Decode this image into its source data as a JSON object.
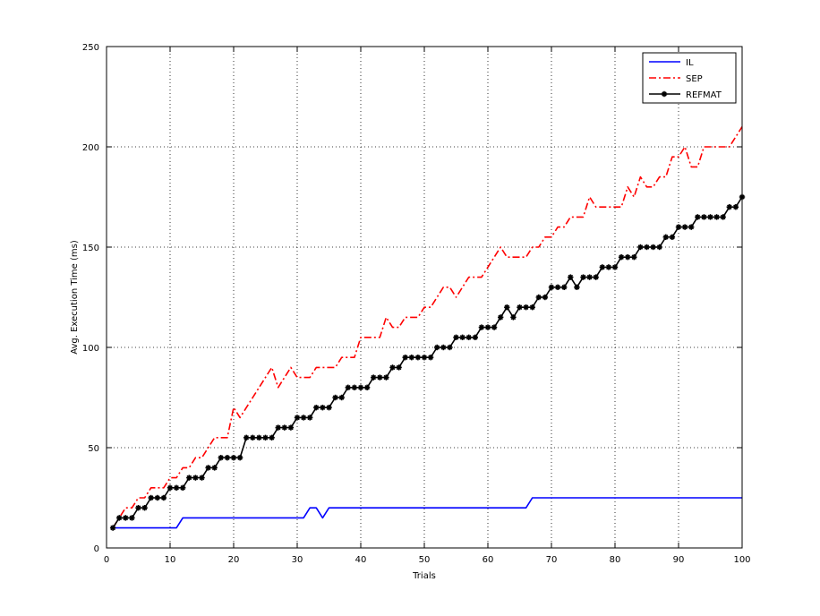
{
  "chart_data": {
    "type": "line",
    "title": "",
    "xlabel": "Trials",
    "ylabel": "Avg. Execution Time (ms)",
    "xlim": [
      0,
      100
    ],
    "ylim": [
      0,
      250
    ],
    "xticks": [
      0,
      10,
      20,
      30,
      40,
      50,
      60,
      70,
      80,
      90,
      100
    ],
    "yticks": [
      0,
      50,
      100,
      150,
      200,
      250
    ],
    "grid": true,
    "legend_position": "top-right",
    "series": [
      {
        "name": "IL",
        "color": "#0000ff",
        "style": "solid",
        "x": [
          1,
          2,
          3,
          4,
          5,
          6,
          7,
          8,
          9,
          10,
          11,
          12,
          13,
          14,
          15,
          16,
          17,
          18,
          19,
          20,
          21,
          22,
          23,
          24,
          25,
          26,
          27,
          28,
          29,
          30,
          31,
          32,
          33,
          34,
          35,
          36,
          37,
          38,
          39,
          40,
          41,
          42,
          43,
          44,
          45,
          46,
          47,
          48,
          49,
          50,
          51,
          52,
          53,
          54,
          55,
          56,
          57,
          58,
          59,
          60,
          61,
          62,
          63,
          64,
          65,
          66,
          67,
          68,
          69,
          70,
          71,
          72,
          73,
          74,
          75,
          76,
          77,
          78,
          79,
          80,
          81,
          82,
          83,
          84,
          85,
          86,
          87,
          88,
          89,
          90,
          91,
          92,
          93,
          94,
          95,
          96,
          97,
          98,
          99,
          100
        ],
        "y": [
          10,
          10,
          10,
          10,
          10,
          10,
          10,
          10,
          10,
          10,
          10,
          15,
          15,
          15,
          15,
          15,
          15,
          15,
          15,
          15,
          15,
          15,
          15,
          15,
          15,
          15,
          15,
          15,
          15,
          15,
          15,
          20,
          20,
          15,
          20,
          20,
          20,
          20,
          20,
          20,
          20,
          20,
          20,
          20,
          20,
          20,
          20,
          20,
          20,
          20,
          20,
          20,
          20,
          20,
          20,
          20,
          20,
          20,
          20,
          20,
          20,
          20,
          20,
          20,
          20,
          20,
          25,
          25,
          25,
          25,
          25,
          25,
          25,
          25,
          25,
          25,
          25,
          25,
          25,
          25,
          25,
          25,
          25,
          25,
          25,
          25,
          25,
          25,
          25,
          25,
          25,
          25,
          25,
          25,
          25,
          25,
          25,
          25,
          25,
          25
        ]
      },
      {
        "name": "SEP",
        "color": "#ff0000",
        "style": "dashdot",
        "x": [
          1,
          2,
          3,
          4,
          5,
          6,
          7,
          8,
          9,
          10,
          11,
          12,
          13,
          14,
          15,
          16,
          17,
          18,
          19,
          20,
          21,
          22,
          23,
          24,
          25,
          26,
          27,
          28,
          29,
          30,
          31,
          32,
          33,
          34,
          35,
          36,
          37,
          38,
          39,
          40,
          41,
          42,
          43,
          44,
          45,
          46,
          47,
          48,
          49,
          50,
          51,
          52,
          53,
          54,
          55,
          56,
          57,
          58,
          59,
          60,
          61,
          62,
          63,
          64,
          65,
          66,
          67,
          68,
          69,
          70,
          71,
          72,
          73,
          74,
          75,
          76,
          77,
          78,
          79,
          80,
          81,
          82,
          83,
          84,
          85,
          86,
          87,
          88,
          89,
          90,
          91,
          92,
          93,
          94,
          95,
          96,
          97,
          98,
          99,
          100
        ],
        "y": [
          10,
          15,
          20,
          20,
          25,
          25,
          30,
          30,
          30,
          35,
          35,
          40,
          40,
          45,
          45,
          50,
          55,
          55,
          55,
          70,
          65,
          70,
          75,
          80,
          85,
          90,
          80,
          85,
          90,
          85,
          85,
          85,
          90,
          90,
          90,
          90,
          95,
          95,
          95,
          105,
          105,
          105,
          105,
          115,
          110,
          110,
          115,
          115,
          115,
          120,
          120,
          125,
          130,
          130,
          125,
          130,
          135,
          135,
          135,
          140,
          145,
          150,
          145,
          145,
          145,
          145,
          150,
          150,
          155,
          155,
          160,
          160,
          165,
          165,
          165,
          175,
          170,
          170,
          170,
          170,
          170,
          180,
          175,
          185,
          180,
          180,
          185,
          185,
          195,
          195,
          200,
          190,
          190,
          200,
          200,
          200,
          200,
          200,
          205,
          210
        ]
      },
      {
        "name": "REFMAT",
        "color": "#000000",
        "style": "solid-marker",
        "x": [
          1,
          2,
          3,
          4,
          5,
          6,
          7,
          8,
          9,
          10,
          11,
          12,
          13,
          14,
          15,
          16,
          17,
          18,
          19,
          20,
          21,
          22,
          23,
          24,
          25,
          26,
          27,
          28,
          29,
          30,
          31,
          32,
          33,
          34,
          35,
          36,
          37,
          38,
          39,
          40,
          41,
          42,
          43,
          44,
          45,
          46,
          47,
          48,
          49,
          50,
          51,
          52,
          53,
          54,
          55,
          56,
          57,
          58,
          59,
          60,
          61,
          62,
          63,
          64,
          65,
          66,
          67,
          68,
          69,
          70,
          71,
          72,
          73,
          74,
          75,
          76,
          77,
          78,
          79,
          80,
          81,
          82,
          83,
          84,
          85,
          86,
          87,
          88,
          89,
          90,
          91,
          92,
          93,
          94,
          95,
          96,
          97,
          98,
          99,
          100
        ],
        "y": [
          10,
          15,
          15,
          15,
          20,
          20,
          25,
          25,
          25,
          30,
          30,
          30,
          35,
          35,
          35,
          40,
          40,
          45,
          45,
          45,
          45,
          55,
          55,
          55,
          55,
          55,
          60,
          60,
          60,
          65,
          65,
          65,
          70,
          70,
          70,
          75,
          75,
          80,
          80,
          80,
          80,
          85,
          85,
          85,
          90,
          90,
          95,
          95,
          95,
          95,
          95,
          100,
          100,
          100,
          105,
          105,
          105,
          105,
          110,
          110,
          110,
          115,
          120,
          115,
          120,
          120,
          120,
          125,
          125,
          130,
          130,
          130,
          135,
          130,
          135,
          135,
          135,
          140,
          140,
          140,
          145,
          145,
          145,
          150,
          150,
          150,
          150,
          155,
          155,
          160,
          160,
          160,
          165,
          165,
          165,
          165,
          165,
          170,
          170,
          175
        ]
      }
    ]
  }
}
